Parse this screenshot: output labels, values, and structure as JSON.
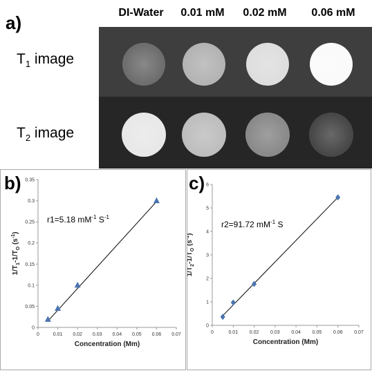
{
  "panels": {
    "a": {
      "label": "a)",
      "columns": [
        "DI-Water",
        "0.01 mM",
        "0.02 mM",
        "0.06 mM"
      ],
      "rows": [
        {
          "prefix": "T",
          "sub": "1",
          "suffix": " image",
          "brightness": [
            110,
            180,
            222,
            250
          ]
        },
        {
          "prefix": "T",
          "sub": "2",
          "suffix": " image",
          "brightness": [
            232,
            190,
            138,
            72
          ]
        }
      ]
    },
    "b": {
      "label": "b)"
    },
    "c": {
      "label": "c)"
    }
  },
  "colors": {
    "marker": "#4a74b0",
    "line": "#000000",
    "axis": "#999999"
  },
  "chart_data": [
    {
      "type": "scatter",
      "panel": "b",
      "marker": "triangle",
      "x": [
        0.005,
        0.01,
        0.02,
        0.06
      ],
      "y": [
        0.019,
        0.045,
        0.1,
        0.3
      ],
      "trendline": {
        "x": [
          0.005,
          0.06
        ],
        "y": [
          0.015,
          0.298
        ]
      },
      "annotation": {
        "main": "r1=5.18 mM",
        "sup1": "-1",
        "mid": " S",
        "sup2": "-1"
      },
      "xlabel": "Concentration (Mm)",
      "ylabel": {
        "text": "1/T",
        "sub1": "1",
        "mid": "-1/T",
        "sub2": "O",
        "suffix": " (s",
        "sup": "-1",
        "end": ")"
      },
      "xlim": [
        0,
        0.07
      ],
      "ylim": [
        0,
        0.35
      ],
      "xticks": [
        "0",
        "0.01",
        "0.02",
        "0.03",
        "0.04",
        "0.05",
        "0.06",
        "0.07"
      ],
      "yticks": [
        "0",
        "0.05",
        "0.1",
        "0.15",
        "0.2",
        "0.25",
        "0.3",
        "0.35"
      ],
      "grid": false
    },
    {
      "type": "scatter",
      "panel": "c",
      "marker": "diamond",
      "x": [
        0.005,
        0.01,
        0.02,
        0.06
      ],
      "y": [
        0.36,
        0.97,
        1.76,
        5.45
      ],
      "trendline": {
        "x": [
          0.005,
          0.06
        ],
        "y": [
          0.41,
          5.45
        ]
      },
      "annotation": {
        "main": "r2=91.72 mM",
        "sup1": "-1",
        "mid": " S",
        "sup2": ""
      },
      "xlabel": "Concentration (Mm)",
      "ylabel": {
        "text": "1/T",
        "sub1": "2",
        "mid": "-1/T",
        "sub2": "O",
        "suffix": " (s",
        "sup": "-1",
        "end": ")"
      },
      "xlim": [
        0,
        0.07
      ],
      "ylim": [
        0,
        6
      ],
      "xticks": [
        "0",
        "0.01",
        "0.02",
        "0.03",
        "0.04",
        "0.05",
        "0.06",
        "0.07"
      ],
      "yticks": [
        "0",
        "1",
        "2",
        "3",
        "4",
        "5",
        "6"
      ],
      "grid": false
    }
  ]
}
